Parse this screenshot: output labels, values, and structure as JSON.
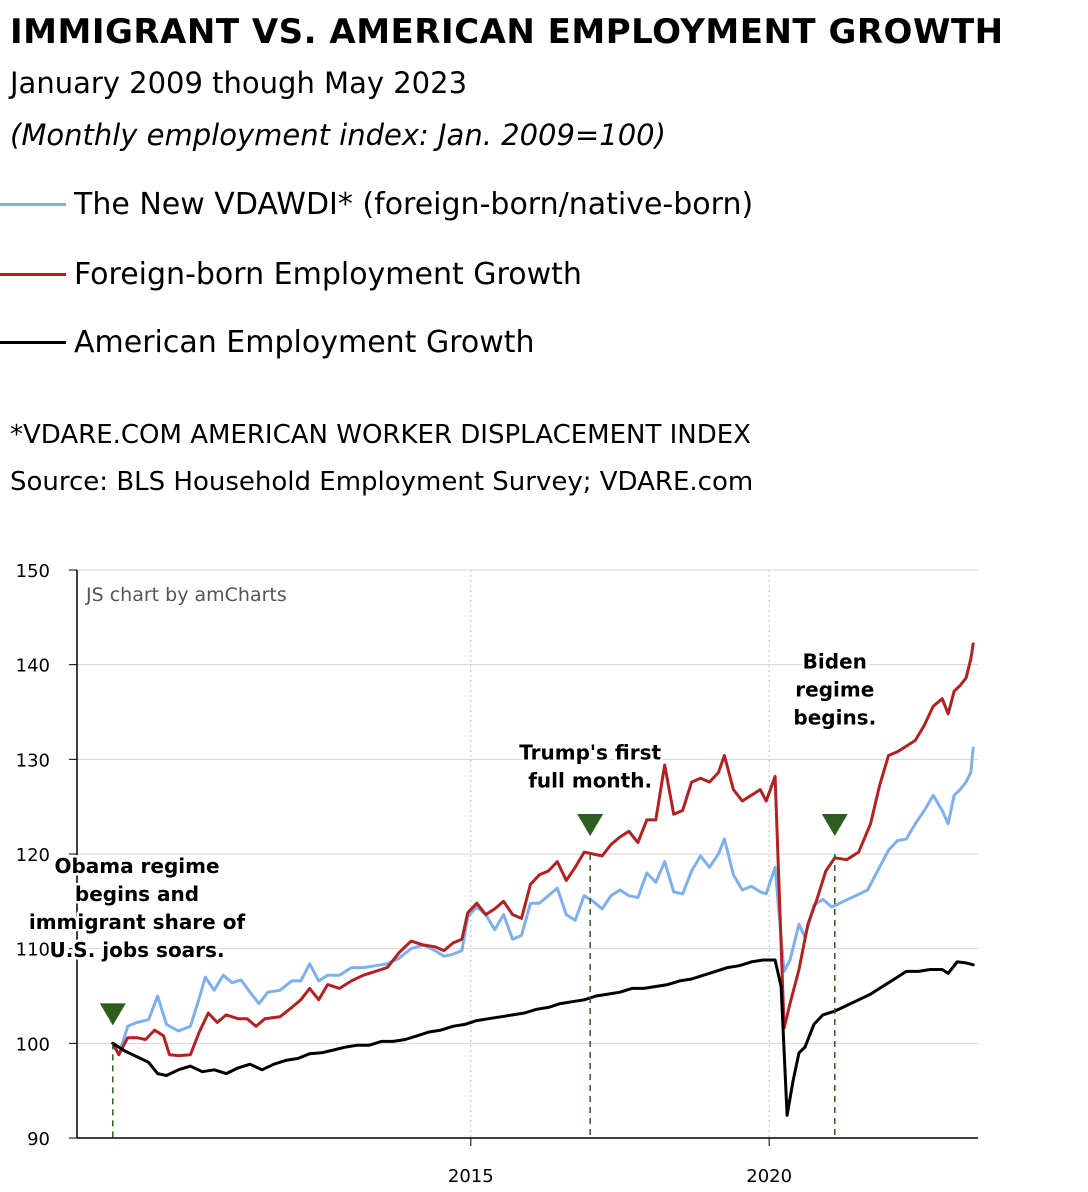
{
  "header": {
    "title": "IMMIGRANT VS. AMERICAN EMPLOYMENT GROWTH",
    "subtitle": "January 2009 though May 2023",
    "index_note": "(Monthly employment index: Jan. 2009=100)"
  },
  "footnote": "*VDARE.COM AMERICAN WORKER DISPLACEMENT INDEX",
  "source": "Source: BLS Household Employment Survey; VDARE.com",
  "credit": "JS chart by amCharts",
  "colors": {
    "vdawdi": "#7fb0ec",
    "foreign": "#b22222",
    "american": "#000000",
    "marker": "#2e5e1e",
    "grid": "#d4d4d4"
  },
  "chart_data": {
    "type": "line",
    "xlim": [
      2008.4,
      2023.5
    ],
    "ylim": [
      90,
      150
    ],
    "y_ticks": [
      90,
      100,
      110,
      120,
      130,
      140,
      150
    ],
    "x_ticks": [
      {
        "value": 2015,
        "label": "2015"
      },
      {
        "value": 2020,
        "label": "2020"
      }
    ],
    "series": [
      {
        "name": "The New VDAWDI* (foreign-born/native-born)",
        "color": "#7fb0ec",
        "points": [
          [
            2009.0,
            100
          ],
          [
            2009.1,
            98.8
          ],
          [
            2009.25,
            101.8
          ],
          [
            2009.4,
            102.2
          ],
          [
            2009.6,
            102.5
          ],
          [
            2009.75,
            105.0
          ],
          [
            2009.9,
            102.0
          ],
          [
            2010.1,
            101.3
          ],
          [
            2010.3,
            101.8
          ],
          [
            2010.45,
            104.8
          ],
          [
            2010.55,
            107.0
          ],
          [
            2010.7,
            105.6
          ],
          [
            2010.85,
            107.2
          ],
          [
            2011.0,
            106.4
          ],
          [
            2011.15,
            106.7
          ],
          [
            2011.3,
            105.4
          ],
          [
            2011.45,
            104.2
          ],
          [
            2011.6,
            105.4
          ],
          [
            2011.8,
            105.6
          ],
          [
            2012.0,
            106.6
          ],
          [
            2012.15,
            106.6
          ],
          [
            2012.3,
            108.4
          ],
          [
            2012.45,
            106.6
          ],
          [
            2012.6,
            107.2
          ],
          [
            2012.8,
            107.2
          ],
          [
            2013.0,
            108.0
          ],
          [
            2013.2,
            108.0
          ],
          [
            2013.4,
            108.2
          ],
          [
            2013.6,
            108.4
          ],
          [
            2013.8,
            109.0
          ],
          [
            2014.0,
            110.0
          ],
          [
            2014.2,
            110.4
          ],
          [
            2014.4,
            109.8
          ],
          [
            2014.55,
            109.2
          ],
          [
            2014.7,
            109.4
          ],
          [
            2014.85,
            109.8
          ],
          [
            2014.95,
            113.4
          ],
          [
            2015.1,
            114.4
          ],
          [
            2015.25,
            113.6
          ],
          [
            2015.4,
            112.0
          ],
          [
            2015.55,
            113.6
          ],
          [
            2015.7,
            111.0
          ],
          [
            2015.85,
            111.4
          ],
          [
            2016.0,
            114.8
          ],
          [
            2016.15,
            114.8
          ],
          [
            2016.3,
            115.6
          ],
          [
            2016.45,
            116.4
          ],
          [
            2016.6,
            113.6
          ],
          [
            2016.75,
            113.0
          ],
          [
            2016.9,
            115.6
          ],
          [
            2017.05,
            115.0
          ],
          [
            2017.2,
            114.2
          ],
          [
            2017.35,
            115.6
          ],
          [
            2017.5,
            116.2
          ],
          [
            2017.65,
            115.6
          ],
          [
            2017.8,
            115.4
          ],
          [
            2017.95,
            118.0
          ],
          [
            2018.1,
            117.0
          ],
          [
            2018.25,
            119.2
          ],
          [
            2018.4,
            116.0
          ],
          [
            2018.55,
            115.8
          ],
          [
            2018.7,
            118.2
          ],
          [
            2018.85,
            119.8
          ],
          [
            2019.0,
            118.6
          ],
          [
            2019.15,
            120.0
          ],
          [
            2019.25,
            121.6
          ],
          [
            2019.4,
            117.8
          ],
          [
            2019.55,
            116.2
          ],
          [
            2019.7,
            116.6
          ],
          [
            2019.85,
            116.0
          ],
          [
            2019.95,
            115.8
          ],
          [
            2020.1,
            118.6
          ],
          [
            2020.25,
            107.6
          ],
          [
            2020.35,
            108.8
          ],
          [
            2020.5,
            112.6
          ],
          [
            2020.6,
            111.2
          ],
          [
            2020.75,
            114.6
          ],
          [
            2020.9,
            115.2
          ],
          [
            2021.05,
            114.4
          ],
          [
            2021.25,
            115.0
          ],
          [
            2021.45,
            115.6
          ],
          [
            2021.65,
            116.2
          ],
          [
            2021.85,
            118.6
          ],
          [
            2022.0,
            120.4
          ],
          [
            2022.15,
            121.4
          ],
          [
            2022.3,
            121.6
          ],
          [
            2022.45,
            123.2
          ],
          [
            2022.6,
            124.6
          ],
          [
            2022.75,
            126.2
          ],
          [
            2022.9,
            124.6
          ],
          [
            2023.0,
            123.2
          ],
          [
            2023.1,
            126.2
          ],
          [
            2023.2,
            126.8
          ],
          [
            2023.3,
            127.6
          ],
          [
            2023.38,
            128.6
          ],
          [
            2023.42,
            131.2
          ]
        ]
      },
      {
        "name": "Foreign-born Employment Growth",
        "color": "#b22222",
        "points": [
          [
            2009.0,
            100
          ],
          [
            2009.1,
            98.8
          ],
          [
            2009.25,
            100.6
          ],
          [
            2009.4,
            100.6
          ],
          [
            2009.55,
            100.4
          ],
          [
            2009.7,
            101.4
          ],
          [
            2009.85,
            100.8
          ],
          [
            2009.95,
            98.8
          ],
          [
            2010.1,
            98.7
          ],
          [
            2010.3,
            98.8
          ],
          [
            2010.45,
            101.2
          ],
          [
            2010.6,
            103.2
          ],
          [
            2010.75,
            102.2
          ],
          [
            2010.9,
            103.0
          ],
          [
            2011.1,
            102.6
          ],
          [
            2011.25,
            102.6
          ],
          [
            2011.4,
            101.8
          ],
          [
            2011.55,
            102.6
          ],
          [
            2011.8,
            102.8
          ],
          [
            2012.0,
            103.8
          ],
          [
            2012.15,
            104.6
          ],
          [
            2012.3,
            105.8
          ],
          [
            2012.45,
            104.6
          ],
          [
            2012.6,
            106.2
          ],
          [
            2012.8,
            105.8
          ],
          [
            2013.0,
            106.6
          ],
          [
            2013.2,
            107.2
          ],
          [
            2013.4,
            107.6
          ],
          [
            2013.6,
            108.0
          ],
          [
            2013.8,
            109.6
          ],
          [
            2014.0,
            110.8
          ],
          [
            2014.2,
            110.4
          ],
          [
            2014.4,
            110.2
          ],
          [
            2014.55,
            109.8
          ],
          [
            2014.7,
            110.6
          ],
          [
            2014.85,
            111.0
          ],
          [
            2014.95,
            113.8
          ],
          [
            2015.1,
            114.8
          ],
          [
            2015.25,
            113.6
          ],
          [
            2015.4,
            114.2
          ],
          [
            2015.55,
            115.0
          ],
          [
            2015.7,
            113.6
          ],
          [
            2015.85,
            113.2
          ],
          [
            2016.0,
            116.8
          ],
          [
            2016.15,
            117.8
          ],
          [
            2016.3,
            118.2
          ],
          [
            2016.45,
            119.2
          ],
          [
            2016.6,
            117.2
          ],
          [
            2016.75,
            118.6
          ],
          [
            2016.9,
            120.2
          ],
          [
            2017.05,
            120.0
          ],
          [
            2017.2,
            119.8
          ],
          [
            2017.35,
            121.0
          ],
          [
            2017.5,
            121.8
          ],
          [
            2017.65,
            122.4
          ],
          [
            2017.8,
            121.2
          ],
          [
            2017.95,
            123.6
          ],
          [
            2018.1,
            123.6
          ],
          [
            2018.25,
            129.4
          ],
          [
            2018.4,
            124.2
          ],
          [
            2018.55,
            124.6
          ],
          [
            2018.7,
            127.6
          ],
          [
            2018.85,
            128.0
          ],
          [
            2019.0,
            127.6
          ],
          [
            2019.15,
            128.6
          ],
          [
            2019.25,
            130.4
          ],
          [
            2019.4,
            126.8
          ],
          [
            2019.55,
            125.6
          ],
          [
            2019.7,
            126.2
          ],
          [
            2019.85,
            126.8
          ],
          [
            2019.95,
            125.6
          ],
          [
            2020.1,
            128.2
          ],
          [
            2020.25,
            101.6
          ],
          [
            2020.35,
            104.2
          ],
          [
            2020.5,
            107.8
          ],
          [
            2020.65,
            112.6
          ],
          [
            2020.8,
            115.2
          ],
          [
            2020.95,
            118.2
          ],
          [
            2021.1,
            119.6
          ],
          [
            2021.3,
            119.4
          ],
          [
            2021.5,
            120.2
          ],
          [
            2021.7,
            123.2
          ],
          [
            2021.85,
            127.2
          ],
          [
            2022.0,
            130.4
          ],
          [
            2022.15,
            130.8
          ],
          [
            2022.3,
            131.4
          ],
          [
            2022.45,
            132.0
          ],
          [
            2022.6,
            133.6
          ],
          [
            2022.75,
            135.6
          ],
          [
            2022.9,
            136.4
          ],
          [
            2023.0,
            134.8
          ],
          [
            2023.1,
            137.2
          ],
          [
            2023.2,
            137.8
          ],
          [
            2023.3,
            138.6
          ],
          [
            2023.38,
            140.6
          ],
          [
            2023.42,
            142.2
          ]
        ]
      },
      {
        "name": "American Employment Growth",
        "color": "#000000",
        "points": [
          [
            2009.0,
            100
          ],
          [
            2009.2,
            99.2
          ],
          [
            2009.4,
            98.6
          ],
          [
            2009.6,
            98.0
          ],
          [
            2009.75,
            96.8
          ],
          [
            2009.9,
            96.6
          ],
          [
            2010.1,
            97.2
          ],
          [
            2010.3,
            97.6
          ],
          [
            2010.5,
            97.0
          ],
          [
            2010.7,
            97.2
          ],
          [
            2010.9,
            96.8
          ],
          [
            2011.1,
            97.4
          ],
          [
            2011.3,
            97.8
          ],
          [
            2011.5,
            97.2
          ],
          [
            2011.7,
            97.8
          ],
          [
            2011.9,
            98.2
          ],
          [
            2012.1,
            98.4
          ],
          [
            2012.3,
            98.9
          ],
          [
            2012.5,
            99.0
          ],
          [
            2012.7,
            99.3
          ],
          [
            2012.9,
            99.6
          ],
          [
            2013.1,
            99.8
          ],
          [
            2013.3,
            99.8
          ],
          [
            2013.5,
            100.2
          ],
          [
            2013.7,
            100.2
          ],
          [
            2013.9,
            100.4
          ],
          [
            2014.1,
            100.8
          ],
          [
            2014.3,
            101.2
          ],
          [
            2014.5,
            101.4
          ],
          [
            2014.7,
            101.8
          ],
          [
            2014.9,
            102.0
          ],
          [
            2015.1,
            102.4
          ],
          [
            2015.3,
            102.6
          ],
          [
            2015.5,
            102.8
          ],
          [
            2015.7,
            103.0
          ],
          [
            2015.9,
            103.2
          ],
          [
            2016.1,
            103.6
          ],
          [
            2016.3,
            103.8
          ],
          [
            2016.5,
            104.2
          ],
          [
            2016.7,
            104.4
          ],
          [
            2016.9,
            104.6
          ],
          [
            2017.1,
            105.0
          ],
          [
            2017.3,
            105.2
          ],
          [
            2017.5,
            105.4
          ],
          [
            2017.7,
            105.8
          ],
          [
            2017.9,
            105.8
          ],
          [
            2018.1,
            106.0
          ],
          [
            2018.3,
            106.2
          ],
          [
            2018.5,
            106.6
          ],
          [
            2018.7,
            106.8
          ],
          [
            2018.9,
            107.2
          ],
          [
            2019.1,
            107.6
          ],
          [
            2019.3,
            108.0
          ],
          [
            2019.5,
            108.2
          ],
          [
            2019.7,
            108.6
          ],
          [
            2019.9,
            108.8
          ],
          [
            2020.1,
            108.8
          ],
          [
            2020.2,
            106.0
          ],
          [
            2020.3,
            92.4
          ],
          [
            2020.4,
            96.0
          ],
          [
            2020.5,
            99.0
          ],
          [
            2020.6,
            99.6
          ],
          [
            2020.75,
            102.0
          ],
          [
            2020.9,
            103.0
          ],
          [
            2021.1,
            103.4
          ],
          [
            2021.3,
            104.0
          ],
          [
            2021.5,
            104.6
          ],
          [
            2021.7,
            105.2
          ],
          [
            2021.9,
            106.0
          ],
          [
            2022.1,
            106.8
          ],
          [
            2022.3,
            107.6
          ],
          [
            2022.5,
            107.6
          ],
          [
            2022.7,
            107.8
          ],
          [
            2022.9,
            107.8
          ],
          [
            2023.0,
            107.4
          ],
          [
            2023.15,
            108.6
          ],
          [
            2023.3,
            108.5
          ],
          [
            2023.42,
            108.3
          ]
        ]
      }
    ],
    "annotations": [
      {
        "x": 2009.0,
        "y": 100.0,
        "lines": [
          "Obama regime",
          "begins and",
          "immigrant share of",
          "U.S. jobs soars."
        ],
        "label_x": 2008.4,
        "label_y": 118.0
      },
      {
        "x": 2017.0,
        "y": 120.0,
        "lines": [
          "Trump's first",
          "full month."
        ],
        "label_x": 2017.0,
        "label_y": 130.0
      },
      {
        "x": 2021.1,
        "y": 120.0,
        "lines": [
          "Biden",
          "regime",
          "begins."
        ],
        "label_x": 2021.1,
        "label_y": 139.6
      }
    ]
  }
}
